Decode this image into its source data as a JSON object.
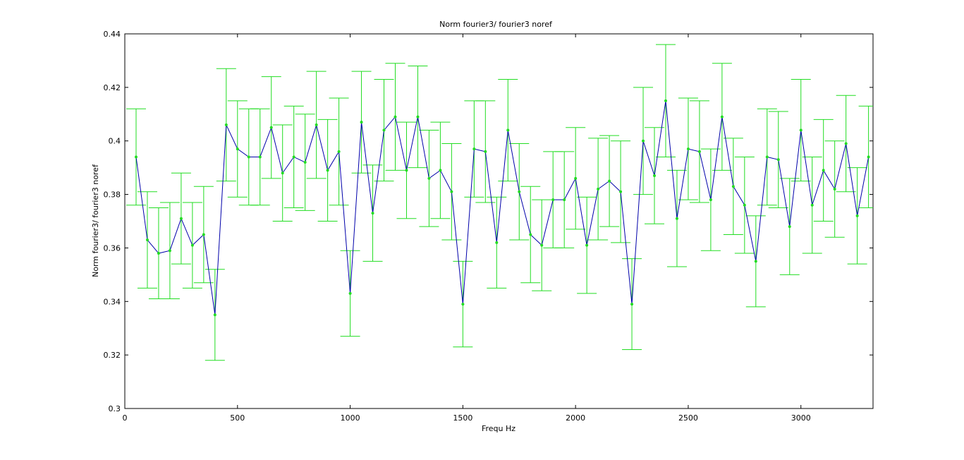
{
  "chart_data": {
    "type": "line",
    "title": "Norm fourier3/ fourier3 noref",
    "xlabel": "Frequ Hz",
    "ylabel": "Norm fourier3/ fourier3 noref",
    "xlim": [
      0,
      3320
    ],
    "ylim": [
      0.3,
      0.44
    ],
    "xticks": [
      0,
      500,
      1000,
      1500,
      2000,
      2500,
      3000
    ],
    "xtick_labels": [
      "0",
      "500",
      "1000",
      "1500",
      "2000",
      "2500",
      "3000"
    ],
    "yticks": [
      0.3,
      0.32,
      0.34,
      0.36,
      0.38,
      0.4,
      0.42,
      0.44
    ],
    "ytick_labels": [
      "0.3",
      "0.32",
      "0.34",
      "0.36",
      "0.38",
      "0.4",
      "0.42",
      "0.44"
    ],
    "grid": false,
    "line_color": "#0000aa",
    "errorbar_color": "#22dd22",
    "x": [
      50,
      100,
      150,
      200,
      250,
      300,
      350,
      400,
      450,
      500,
      550,
      600,
      650,
      700,
      750,
      800,
      850,
      900,
      950,
      1000,
      1050,
      1100,
      1150,
      1200,
      1250,
      1300,
      1350,
      1400,
      1450,
      1500,
      1550,
      1600,
      1650,
      1700,
      1750,
      1800,
      1850,
      1900,
      1950,
      2000,
      2050,
      2100,
      2150,
      2200,
      2250,
      2300,
      2350,
      2400,
      2450,
      2500,
      2550,
      2600,
      2650,
      2700,
      2750,
      2800,
      2850,
      2900,
      2950,
      3000,
      3050,
      3100,
      3150,
      3200,
      3250,
      3300
    ],
    "y": [
      0.394,
      0.363,
      0.358,
      0.359,
      0.371,
      0.361,
      0.365,
      0.335,
      0.406,
      0.397,
      0.394,
      0.394,
      0.405,
      0.388,
      0.394,
      0.392,
      0.406,
      0.389,
      0.396,
      0.343,
      0.407,
      0.373,
      0.404,
      0.409,
      0.389,
      0.409,
      0.386,
      0.389,
      0.381,
      0.339,
      0.397,
      0.396,
      0.362,
      0.404,
      0.381,
      0.365,
      0.361,
      0.378,
      0.378,
      0.386,
      0.361,
      0.382,
      0.385,
      0.381,
      0.339,
      0.4,
      0.387,
      0.415,
      0.371,
      0.397,
      0.396,
      0.378,
      0.409,
      0.383,
      0.376,
      0.355,
      0.394,
      0.393,
      0.368,
      0.404,
      0.376,
      0.389,
      0.382,
      0.399,
      0.372,
      0.394
    ],
    "error": [
      0.018,
      0.018,
      0.017,
      0.018,
      0.017,
      0.016,
      0.018,
      0.017,
      0.021,
      0.018,
      0.018,
      0.018,
      0.019,
      0.018,
      0.019,
      0.018,
      0.02,
      0.019,
      0.02,
      0.016,
      0.019,
      0.018,
      0.019,
      0.02,
      0.018,
      0.019,
      0.018,
      0.018,
      0.018,
      0.016,
      0.018,
      0.019,
      0.017,
      0.019,
      0.018,
      0.018,
      0.017,
      0.018,
      0.018,
      0.019,
      0.018,
      0.019,
      0.017,
      0.019,
      0.017,
      0.02,
      0.018,
      0.021,
      0.018,
      0.019,
      0.019,
      0.019,
      0.02,
      0.018,
      0.018,
      0.017,
      0.018,
      0.018,
      0.018,
      0.019,
      0.018,
      0.019,
      0.018,
      0.018,
      0.018,
      0.019
    ]
  }
}
